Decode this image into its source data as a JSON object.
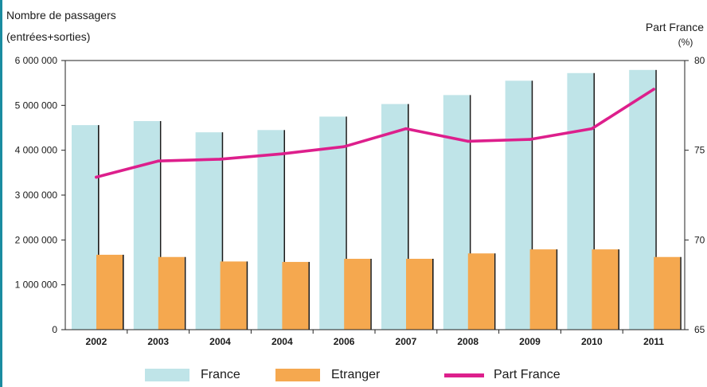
{
  "chart_data": {
    "type": "bar",
    "categories": [
      "2002",
      "2003",
      "2004",
      "2004",
      "2006",
      "2007",
      "2008",
      "2009",
      "2010",
      "2011"
    ],
    "series": [
      {
        "name": "France",
        "values": [
          4560000,
          4650000,
          4400000,
          4450000,
          4750000,
          5030000,
          5230000,
          5550000,
          5720000,
          5790000
        ],
        "color": "#bfe4e8",
        "axis": "left"
      },
      {
        "name": "Etranger",
        "values": [
          1670000,
          1620000,
          1520000,
          1510000,
          1580000,
          1580000,
          1700000,
          1790000,
          1790000,
          1620000
        ],
        "color": "#f5a84f",
        "axis": "left"
      },
      {
        "name": "Part France",
        "type": "line",
        "values": [
          73.5,
          74.4,
          74.5,
          74.8,
          75.2,
          76.2,
          75.5,
          75.6,
          76.2,
          78.4
        ],
        "color": "#dd1f8c",
        "axis": "right"
      }
    ],
    "y_left": {
      "title": "Nombre de passagers",
      "subtitle": "(entrées+sorties)",
      "ylim": [
        0,
        6000000
      ],
      "ticks": [
        0,
        1000000,
        2000000,
        3000000,
        4000000,
        5000000,
        6000000
      ],
      "tick_labels": [
        "0",
        "1 000 000",
        "2 000 000",
        "3 000 000",
        "4 000 000",
        "5 000 000",
        "6 000 000"
      ]
    },
    "y_right": {
      "title": "Part France",
      "unit": "(%)",
      "ylim": [
        65,
        80
      ],
      "ticks": [
        65,
        70,
        75,
        80
      ],
      "tick_labels": [
        "65",
        "70",
        "75",
        "80"
      ]
    },
    "grid": false,
    "legend_position": "bottom"
  },
  "legend": {
    "france": "France",
    "etranger": "Etranger",
    "part_france": "Part France"
  },
  "colors": {
    "france": "#bfe4e8",
    "etranger": "#f5a84f",
    "part_france": "#dd1f8c",
    "accent_stripe": "#1a8ca0"
  }
}
